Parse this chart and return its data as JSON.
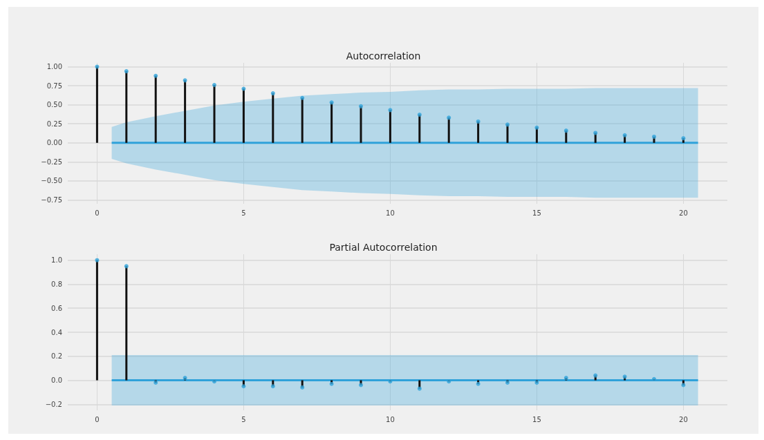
{
  "chart_data": [
    {
      "type": "lollipop",
      "title": "Autocorrelation",
      "grid": true,
      "xlim": [
        -1,
        21.5
      ],
      "xticks": [
        0,
        5,
        10,
        15,
        20
      ],
      "ylim": [
        -0.8,
        1.05
      ],
      "yticks": [
        {
          "value": -0.75,
          "label": "−0.75"
        },
        {
          "value": -0.5,
          "label": "−0.50"
        },
        {
          "value": -0.25,
          "label": "−0.25"
        },
        {
          "value": 0,
          "label": "0.00"
        },
        {
          "value": 0.25,
          "label": "0.25"
        },
        {
          "value": 0.5,
          "label": "0.50"
        },
        {
          "value": 0.75,
          "label": "0.75"
        },
        {
          "value": 1,
          "label": "1.00"
        }
      ],
      "series": [
        {
          "color": "#30a2da",
          "marker": "circle",
          "x": [
            0,
            1,
            2,
            3,
            4,
            5,
            6,
            7,
            8,
            9,
            10,
            11,
            12,
            13,
            14,
            15,
            16,
            17,
            18,
            19,
            20
          ],
          "values": [
            1.0,
            0.94,
            0.88,
            0.82,
            0.76,
            0.71,
            0.65,
            0.59,
            0.53,
            0.48,
            0.43,
            0.37,
            0.33,
            0.28,
            0.24,
            0.2,
            0.16,
            0.13,
            0.1,
            0.08,
            0.06
          ]
        },
        {
          "type": "line",
          "color": "#30a2da",
          "marker": "none",
          "x": [
            0.5,
            1,
            2,
            3,
            4,
            5,
            6,
            7,
            8,
            9,
            10,
            11,
            12,
            13,
            14,
            15,
            16,
            17,
            18,
            19,
            20,
            20.5
          ],
          "values": [
            0,
            0,
            0,
            0,
            0,
            0,
            0,
            0,
            0,
            0,
            0,
            0,
            0,
            0,
            0,
            0,
            0,
            0,
            0,
            0,
            0,
            0
          ],
          "lower": [
            -0.21,
            -0.27,
            -0.35,
            -0.42,
            -0.49,
            -0.54,
            -0.58,
            -0.62,
            -0.64,
            -0.66,
            -0.67,
            -0.69,
            -0.7,
            -0.7,
            -0.71,
            -0.71,
            -0.71,
            -0.72,
            -0.72,
            -0.72,
            -0.72,
            -0.72
          ],
          "upper": [
            0.21,
            0.27,
            0.35,
            0.42,
            0.49,
            0.54,
            0.58,
            0.62,
            0.64,
            0.66,
            0.67,
            0.69,
            0.7,
            0.7,
            0.71,
            0.71,
            0.71,
            0.72,
            0.72,
            0.72,
            0.72,
            0.72
          ]
        }
      ]
    },
    {
      "type": "lollipop",
      "title": "Partial Autocorrelation",
      "grid": true,
      "xlim": [
        -1,
        21.5
      ],
      "xticks": [
        0,
        5,
        10,
        15,
        20
      ],
      "ylim": [
        -0.25,
        1.05
      ],
      "yticks": [
        {
          "value": -0.2,
          "label": "−0.2"
        },
        {
          "value": 0,
          "label": "0.0"
        },
        {
          "value": 0.2,
          "label": "0.2"
        },
        {
          "value": 0.4,
          "label": "0.4"
        },
        {
          "value": 0.6,
          "label": "0.6"
        },
        {
          "value": 0.8,
          "label": "0.8"
        },
        {
          "value": 1,
          "label": "1.0"
        }
      ],
      "series": [
        {
          "color": "#30a2da",
          "marker": "circle",
          "x": [
            0,
            1,
            2,
            3,
            4,
            5,
            6,
            7,
            8,
            9,
            10,
            11,
            12,
            13,
            14,
            15,
            16,
            17,
            18,
            19,
            20
          ],
          "values": [
            1.0,
            0.95,
            -0.02,
            0.02,
            -0.01,
            -0.05,
            -0.05,
            -0.06,
            -0.03,
            -0.04,
            -0.01,
            -0.07,
            -0.01,
            -0.03,
            -0.02,
            -0.02,
            0.02,
            0.04,
            0.03,
            0.01,
            -0.04
          ]
        },
        {
          "type": "line",
          "color": "#30a2da",
          "marker": "none",
          "x": [
            0.5,
            20.5
          ],
          "values": [
            0,
            0
          ],
          "lower": [
            -0.21,
            -0.21
          ],
          "upper": [
            0.21,
            0.21
          ]
        }
      ]
    }
  ]
}
